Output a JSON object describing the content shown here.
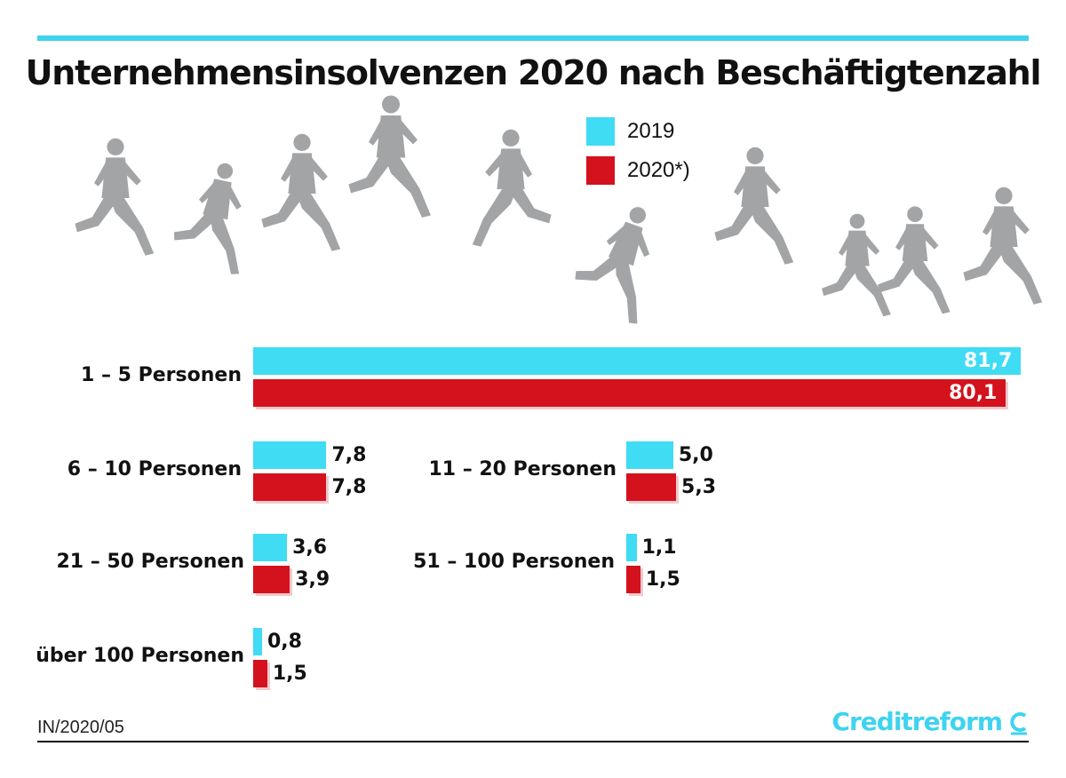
{
  "title": "Unternehmensinsolvenzen 2020 nach Beschäftigtenzahl",
  "colors": {
    "series_2019": "#3fdcf4",
    "series_2020": "#d4121d",
    "accent": "#3fd3ef"
  },
  "chart_data": {
    "type": "bar",
    "orientation": "horizontal",
    "title": "Unternehmensinsolvenzen 2020 nach Beschäftigtenzahl",
    "categories": [
      "1 – 5 Personen",
      "6 – 10 Personen",
      "11 – 20 Personen",
      "21 – 50 Personen",
      "51 – 100 Personen",
      "über 100 Personen"
    ],
    "series": [
      {
        "name": "2019",
        "values": [
          81.7,
          7.8,
          5.0,
          3.6,
          1.1,
          0.8
        ],
        "labels": [
          "81,7",
          "7,8",
          "5,0",
          "3,6",
          "1,1",
          "0,8"
        ]
      },
      {
        "name": "2020*)",
        "values": [
          80.1,
          7.8,
          5.3,
          3.9,
          1.5,
          1.5
        ],
        "labels": [
          "80,1",
          "7,8",
          "5,3",
          "3,9",
          "1,5",
          "1,5"
        ]
      }
    ],
    "legend_position": "top",
    "grid": false
  },
  "footer": {
    "source": "IN/2020/05",
    "brand": "Creditreform"
  },
  "decor": {
    "figures_icon": "running-person-icon",
    "brand_icon": "creditreform-c-icon"
  }
}
